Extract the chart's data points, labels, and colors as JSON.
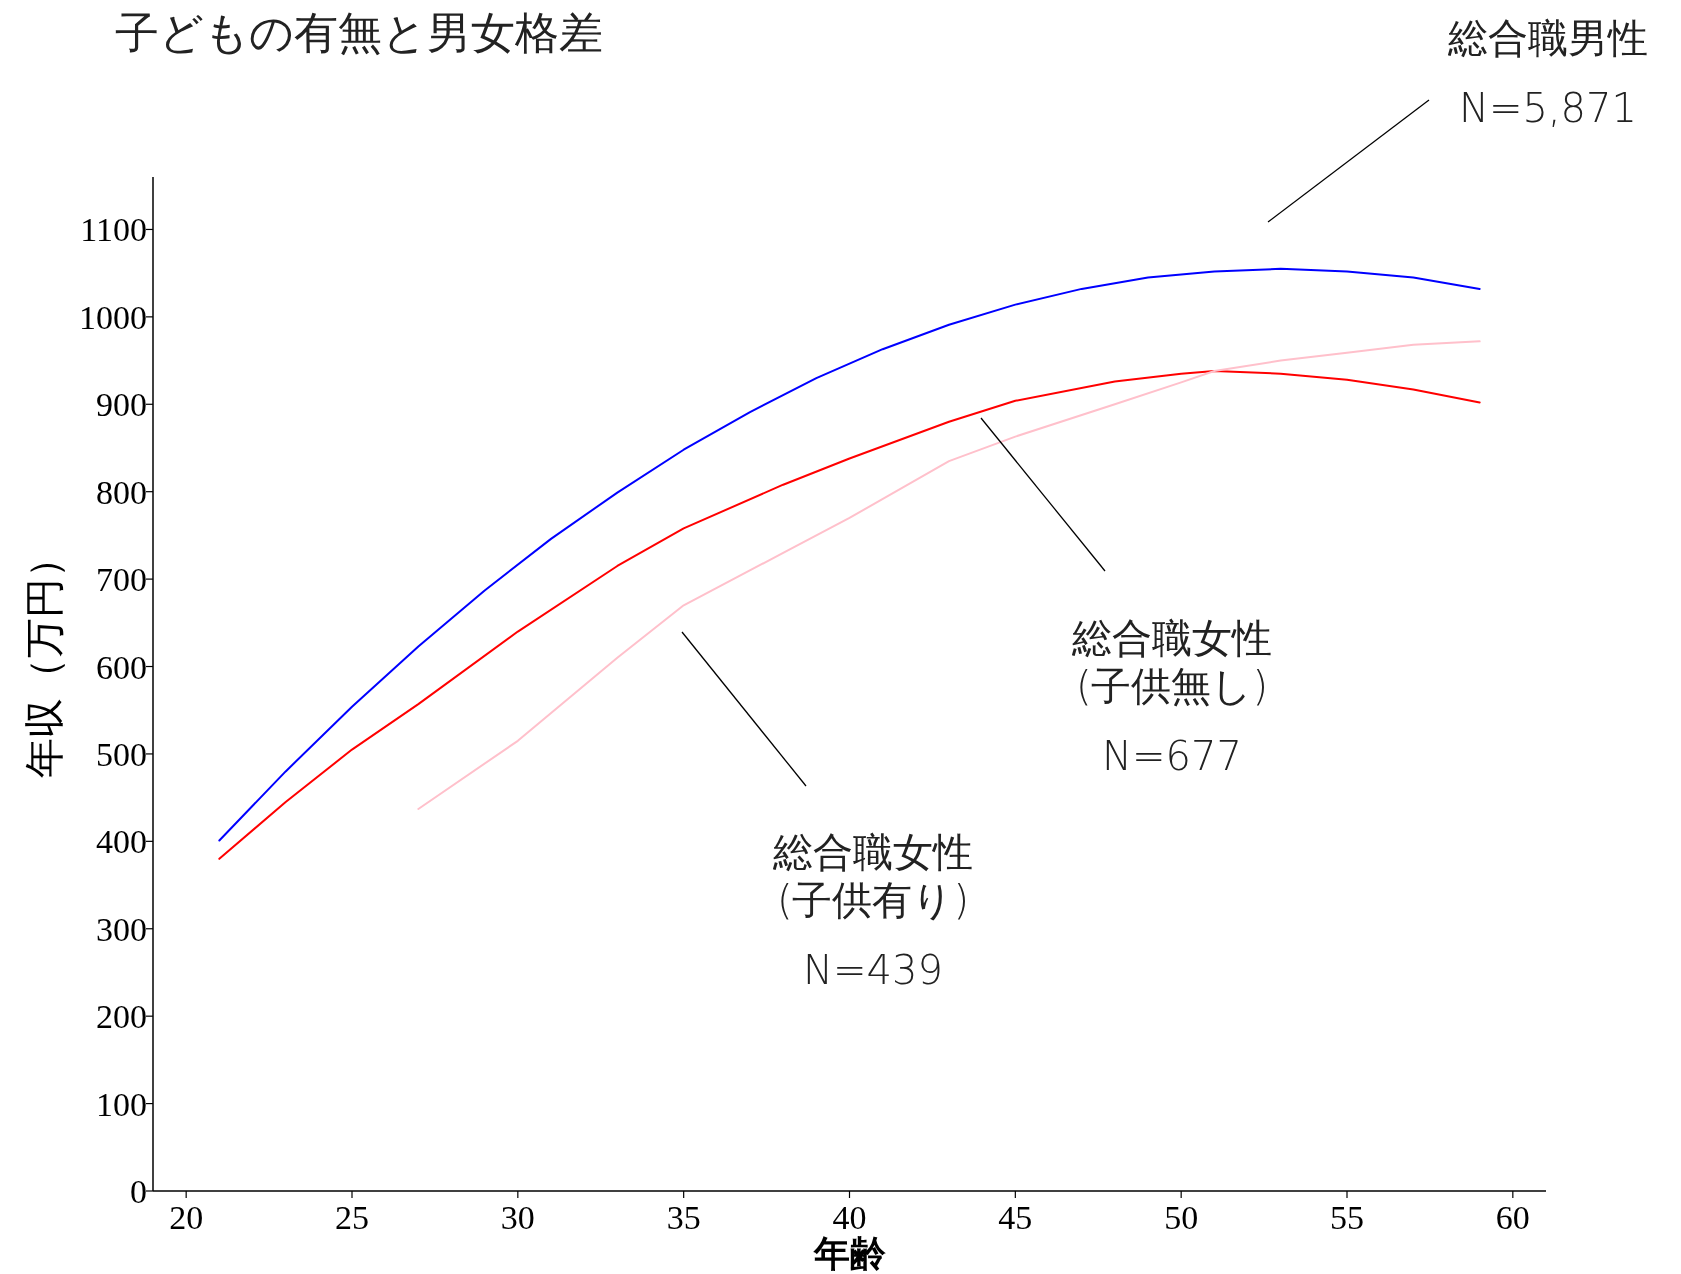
{
  "chart_data": {
    "type": "line",
    "title": "子どもの有無と男女格差",
    "xlabel": "年齢",
    "ylabel": "年収（万円）",
    "xlim": [
      19,
      61
    ],
    "ylim": [
      0,
      1160
    ],
    "xticks": [
      20,
      25,
      30,
      35,
      40,
      45,
      50,
      55,
      60
    ],
    "yticks": [
      0,
      100,
      200,
      300,
      400,
      500,
      600,
      700,
      800,
      900,
      1000,
      1100
    ],
    "series": [
      {
        "color": "#0000ff",
        "x": [
          21,
          23,
          25,
          27,
          29,
          31,
          33,
          35,
          37,
          39,
          41,
          43,
          45,
          47,
          49,
          51,
          53,
          55,
          57,
          59
        ],
        "values": [
          401,
          480,
          554,
          623,
          687,
          746,
          799,
          848,
          891,
          930,
          963,
          991,
          1014,
          1032,
          1045,
          1052,
          1055,
          1052,
          1045,
          1032
        ]
      },
      {
        "color": "#ff0000",
        "x": [
          21,
          23,
          25,
          27,
          30,
          33,
          35,
          38,
          40,
          43,
          45,
          48,
          50,
          51,
          53,
          55,
          57,
          59
        ],
        "values": [
          380,
          445,
          505,
          557,
          640,
          715,
          758,
          808,
          838,
          880,
          904,
          926,
          935,
          938,
          935,
          928,
          917,
          902
        ]
      },
      {
        "color": "#ffc0cb",
        "x": [
          27,
          30,
          33,
          35,
          38,
          40,
          43,
          45,
          48,
          50,
          51,
          53,
          55,
          57,
          59
        ],
        "values": [
          437,
          515,
          610,
          670,
          730,
          770,
          835,
          863,
          900,
          925,
          938,
          950,
          959,
          968,
          972
        ]
      }
    ],
    "annotations": [
      "総合職男性\nN=5,871",
      "総合職女性\n(子供無し)\nN=677",
      "総合職女性\n(子供有り)\nN=439"
    ]
  }
}
